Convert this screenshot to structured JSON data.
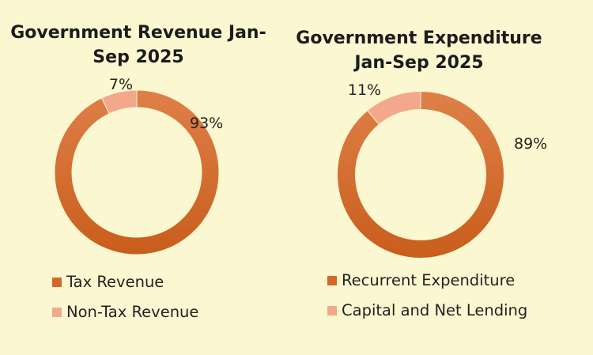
{
  "chart_data": [
    {
      "type": "pie",
      "subtype": "donut",
      "title": "Government Revenue Jan-Sep 2025",
      "title_lines": [
        "Government Revenue Jan-",
        "Sep 2025"
      ],
      "categories": [
        "Tax Revenue",
        "Non-Tax Revenue"
      ],
      "values": [
        93,
        7
      ],
      "data_labels": [
        "93%",
        "7%"
      ],
      "colors": [
        "#d2692a",
        "#f3a88c"
      ],
      "legend": "bottom-left"
    },
    {
      "type": "pie",
      "subtype": "donut",
      "title": "Government Expenditure Jan-Sep 2025",
      "title_lines": [
        "Government Expenditure",
        "Jan-Sep 2025"
      ],
      "categories": [
        "Recurrent Expenditure",
        "Capital and Net Lending"
      ],
      "values": [
        89,
        11
      ],
      "data_labels": [
        "89%",
        "11%"
      ],
      "colors": [
        "#d2692a",
        "#f3a88c"
      ],
      "legend": "bottom-left"
    }
  ]
}
